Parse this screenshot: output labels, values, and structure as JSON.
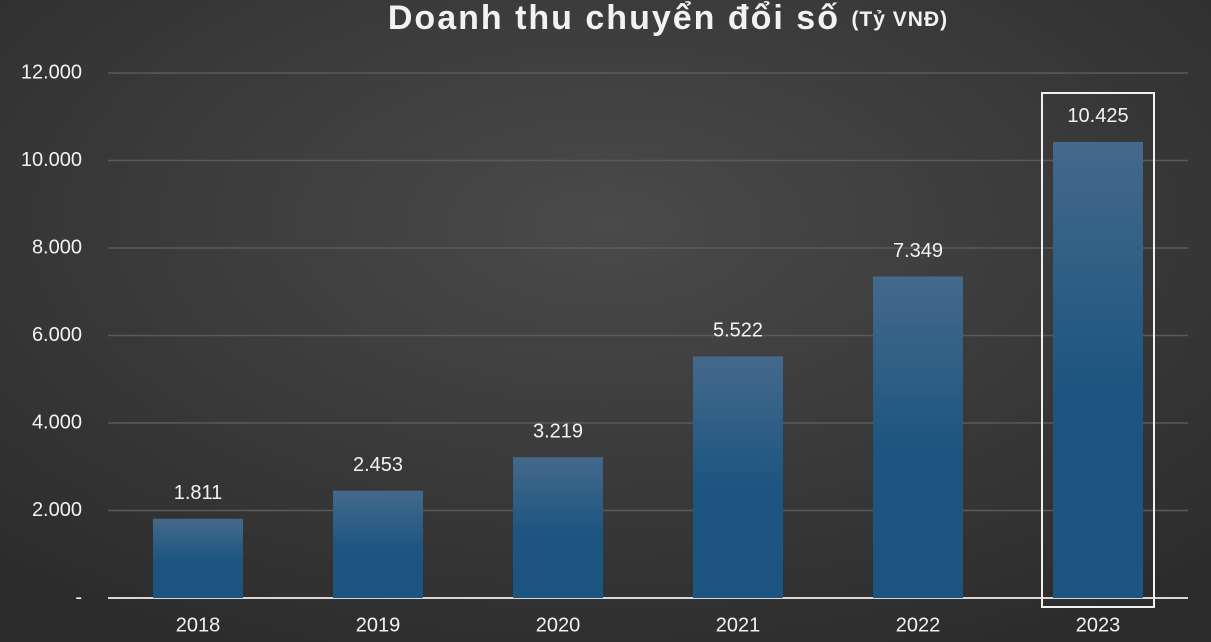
{
  "chart_data": {
    "type": "bar",
    "title": "Doanh thu chuyển đổi số",
    "subtitle": "(Tỷ VNĐ)",
    "categories": [
      "2018",
      "2019",
      "2020",
      "2021",
      "2022",
      "2023"
    ],
    "values": [
      1811,
      2453,
      3219,
      5522,
      7349,
      10425
    ],
    "value_labels": [
      "1.811",
      "2.453",
      "3.219",
      "5.522",
      "7.349",
      "10.425"
    ],
    "color": "#1c5580",
    "ylim": [
      0,
      12000
    ],
    "yticks": [
      {
        "value": 0,
        "label": "-"
      },
      {
        "value": 2000,
        "label": "2.000"
      },
      {
        "value": 4000,
        "label": "4.000"
      },
      {
        "value": 6000,
        "label": "6.000"
      },
      {
        "value": 8000,
        "label": "8.000"
      },
      {
        "value": 10000,
        "label": "10.000"
      },
      {
        "value": 12000,
        "label": "12.000"
      }
    ],
    "grid": true
  }
}
